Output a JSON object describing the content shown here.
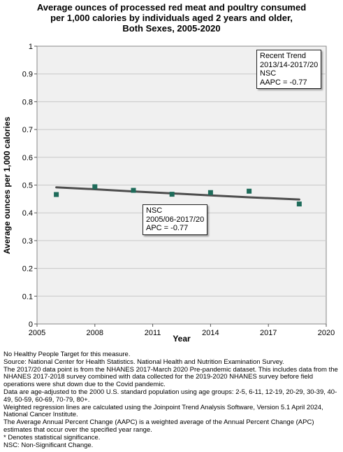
{
  "chart_data": {
    "type": "scatter",
    "title_lines": [
      "Average ounces of processed red meat and poultry consumed",
      "per 1,000 calories by individuals aged 2 years and older,",
      "Both Sexes,  2005-2020"
    ],
    "xlabel": "Year",
    "ylabel": "Average ounces per 1,000 calories",
    "xlim": [
      2005,
      2020
    ],
    "ylim": [
      0,
      1
    ],
    "x_ticks": [
      "2005",
      "2008",
      "2011",
      "2014",
      "2017",
      "2020"
    ],
    "y_ticks": [
      "0",
      "0.1",
      "0.2",
      "0.3",
      "0.4",
      "0.5",
      "0.6",
      "0.7",
      "0.8",
      "0.9",
      "1"
    ],
    "grid": true,
    "points": {
      "x": [
        2006.0,
        2008.0,
        2010.0,
        2012.0,
        2014.0,
        2016.0,
        2018.6
      ],
      "y": [
        0.466,
        0.494,
        0.481,
        0.467,
        0.473,
        0.478,
        0.432
      ]
    },
    "trend_line": {
      "x": [
        2006.0,
        2008.0,
        2010.0,
        2012.0,
        2014.0,
        2016.0,
        2018.6
      ],
      "y": [
        0.492,
        0.485,
        0.477,
        0.47,
        0.463,
        0.456,
        0.448
      ]
    },
    "annotations": {
      "recent_trend": [
        "Recent Trend",
        "2013/14-2017/20",
        "NSC",
        "AAPC = -0.77"
      ],
      "overall_trend": [
        "NSC",
        "2005/06-2017/20",
        "APC = -0.77"
      ]
    },
    "colors": {
      "point": "#1e6b5a",
      "line": "#4d4d4d",
      "plot_bg": "#f0f0f0",
      "grid": "#c8c8c8"
    }
  },
  "notes": [
    "No Healthy People Target for this measure.",
    "Source: National Center for Health Statistics. National Health and Nutrition Examination Survey.",
    "The 2017/20 data point is from the NHANES 2017-March 2020 Pre-pandemic dataset. This includes data from the NHANES 2017-2018 survey combined with data collected for the 2019-2020 NHANES survey before field operations were shut down due to the Covid pandemic.",
    "Data are age-adjusted to the 2000 U.S. standard population using age groups: 2-5, 6-11, 12-19, 20-29, 30-39, 40-49, 50-59, 60-69, 70-79, 80+.",
    "Weighted regression lines are calculated using the Joinpoint Trend Analysis Software, Version 5.1 April 2024, National Cancer Institute.",
    "The Average Annual Percent Change (AAPC) is a weighted average of the Annual Percent Change (APC) estimates that occur over the specified year range.",
    "* Denotes statistical significance.",
    "NSC: Non-Significant Change."
  ]
}
